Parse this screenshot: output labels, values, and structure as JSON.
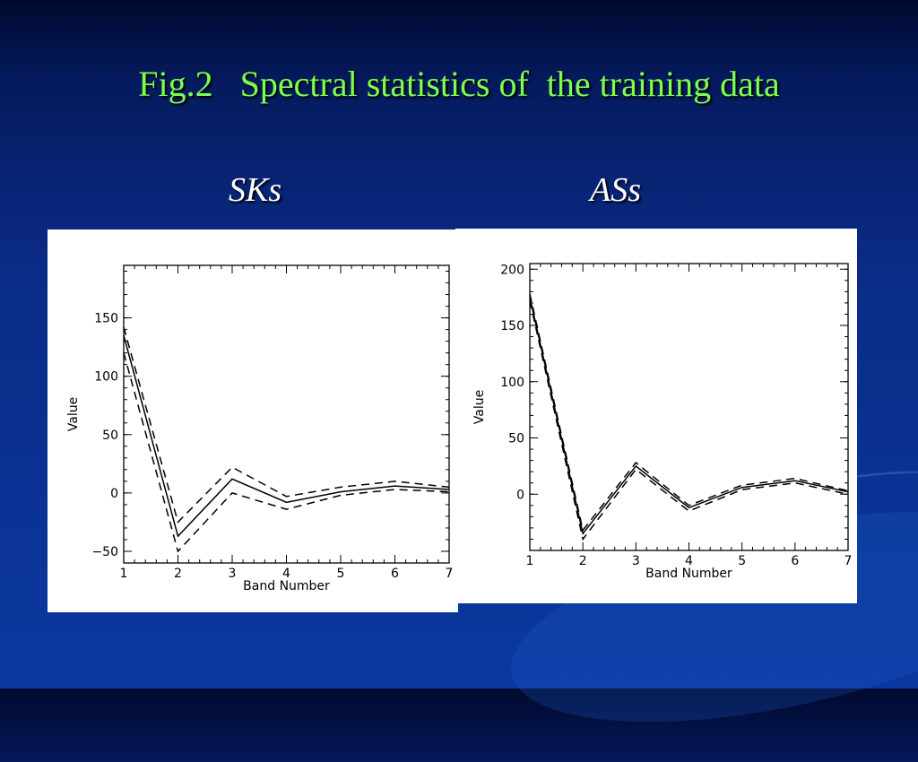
{
  "slide": {
    "title": "Fig.2   Spectral statistics of  the training data",
    "left_label": "SKs",
    "right_label": "ASs"
  },
  "chart_data": [
    {
      "type": "line",
      "xlabel": "Band Number",
      "ylabel": "Value",
      "xlim": [
        1,
        7
      ],
      "ylim": [
        -60,
        195
      ],
      "x_ticks": [
        1,
        2,
        3,
        4,
        5,
        6,
        7
      ],
      "y_ticks": [
        -50,
        0,
        50,
        100,
        150
      ],
      "y_tick_labels": [
        "−50",
        "0",
        "50",
        "100",
        "150"
      ],
      "series": [
        {
          "style": "solid",
          "x": [
            1,
            2,
            3,
            4,
            5,
            6,
            7
          ],
          "y": [
            135,
            -37,
            12,
            -8,
            1,
            6,
            3
          ]
        },
        {
          "style": "dashed",
          "x": [
            1,
            2,
            3,
            4,
            5,
            6,
            7
          ],
          "y": [
            142,
            -25,
            22,
            -3,
            5,
            10,
            5
          ]
        },
        {
          "style": "dashed",
          "x": [
            1,
            2,
            3,
            4,
            5,
            6,
            7
          ],
          "y": [
            120,
            -50,
            0,
            -14,
            -2,
            3,
            1
          ]
        }
      ]
    },
    {
      "type": "line",
      "xlabel": "Band Number",
      "ylabel": "Value",
      "xlim": [
        1,
        7
      ],
      "ylim": [
        -50,
        205
      ],
      "x_ticks": [
        1,
        2,
        3,
        4,
        5,
        6,
        7
      ],
      "y_ticks": [
        0,
        50,
        100,
        150,
        200
      ],
      "y_tick_labels": [
        "0",
        "50",
        "100",
        "150",
        "200"
      ],
      "series": [
        {
          "style": "solid",
          "x": [
            1,
            2,
            3,
            4,
            5,
            6,
            7
          ],
          "y": [
            175,
            -35,
            25,
            -12,
            6,
            12,
            2
          ]
        },
        {
          "style": "dashed",
          "x": [
            1,
            2,
            3,
            4,
            5,
            6,
            7
          ],
          "y": [
            178,
            -32,
            28,
            -10,
            8,
            14,
            3
          ]
        },
        {
          "style": "dashed",
          "x": [
            1,
            2,
            3,
            4,
            5,
            6,
            7
          ],
          "y": [
            172,
            -40,
            22,
            -15,
            4,
            10,
            0
          ]
        }
      ]
    }
  ]
}
